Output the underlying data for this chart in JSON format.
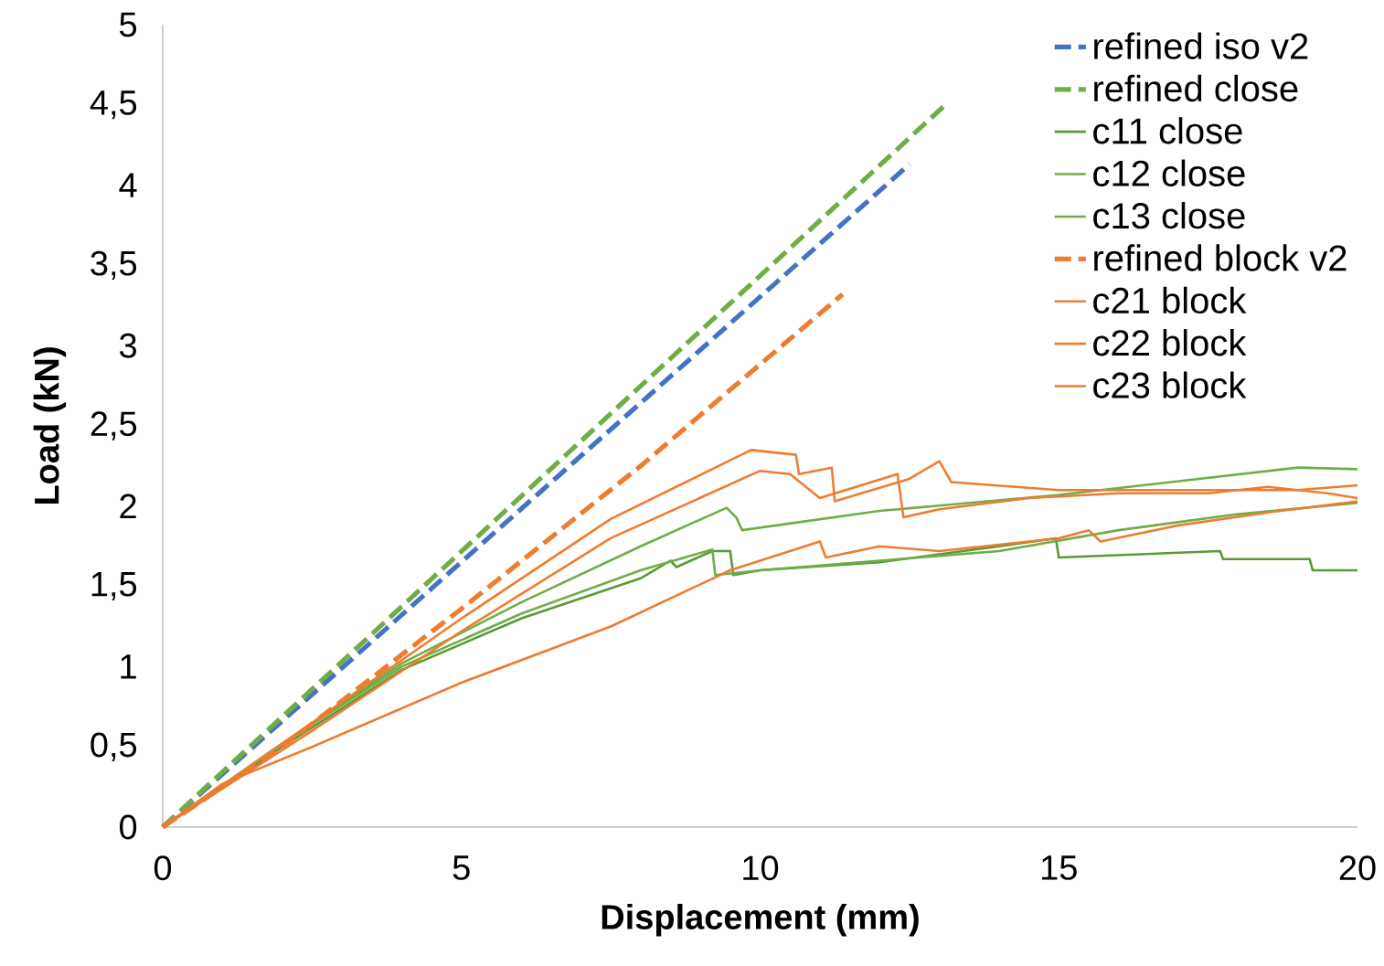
{
  "chart_data": {
    "type": "line",
    "xlabel": "Displacement (mm)",
    "ylabel": "Load (kN)",
    "xlim": [
      0,
      20
    ],
    "xticks": [
      0,
      5,
      10,
      15,
      20
    ],
    "ylim": [
      0,
      5
    ],
    "yticks": [
      0,
      {
        "value": 0.5,
        "label": "0,5"
      },
      1,
      {
        "value": 1.5,
        "label": "1,5"
      },
      2,
      {
        "value": 2.5,
        "label": "2,5"
      },
      3,
      {
        "value": 3.5,
        "label": "3,5"
      },
      4,
      {
        "value": 4.5,
        "label": "4,5"
      },
      5
    ],
    "grid": false,
    "legend": "top right",
    "marker": "none",
    "series": [
      {
        "name": "refined iso v2",
        "color": "#4472c4",
        "line_style": "dashed",
        "x": [
          0,
          12.5
        ],
        "values": [
          0,
          4.13
        ]
      },
      {
        "name": "refined close",
        "color": "#70ad47",
        "line_style": "dashed",
        "x": [
          0,
          13.07
        ],
        "values": [
          0,
          4.49
        ]
      },
      {
        "name": "c11 close",
        "color": "#5a9a35",
        "line_style": "solid",
        "x": [
          0,
          2,
          4,
          6,
          8,
          8.5,
          8.6,
          9.2,
          9.5,
          9.55,
          10,
          12,
          14,
          14.95,
          15.0,
          17.7,
          17.75,
          19.2,
          19.25,
          20
        ],
        "values": [
          0,
          0.5,
          0.98,
          1.3,
          1.55,
          1.66,
          1.62,
          1.72,
          1.72,
          1.57,
          1.6,
          1.65,
          1.75,
          1.8,
          1.68,
          1.72,
          1.67,
          1.67,
          1.6,
          1.6
        ]
      },
      {
        "name": "c12 close",
        "color": "#70ad47",
        "line_style": "solid",
        "x": [
          0,
          2,
          4,
          6,
          8,
          9.44,
          9.6,
          9.7,
          12,
          15,
          19,
          20
        ],
        "values": [
          0,
          0.52,
          1.02,
          1.4,
          1.75,
          1.99,
          1.93,
          1.85,
          1.97,
          2.07,
          2.24,
          2.23
        ]
      },
      {
        "name": "c13 close",
        "color": "#70ad47",
        "line_style": "solid",
        "x": [
          0,
          2,
          4,
          6,
          8,
          9.2,
          9.25,
          10,
          14,
          16,
          18,
          20
        ],
        "values": [
          0,
          0.52,
          1.0,
          1.33,
          1.6,
          1.73,
          1.57,
          1.6,
          1.72,
          1.85,
          1.95,
          2.02
        ]
      },
      {
        "name": "refined block v2",
        "color": "#ed7d31",
        "line_style": "dashed",
        "x": [
          0,
          2,
          5,
          8,
          11.38
        ],
        "values": [
          0,
          0.5,
          1.36,
          2.25,
          3.32
        ]
      },
      {
        "name": "c21 block",
        "color": "#ed7d31",
        "line_style": "solid",
        "x": [
          0,
          2.5,
          5,
          7.5,
          9.85,
          10.6,
          10.65,
          11.2,
          11.25,
          12.5,
          13,
          13.2,
          15,
          17,
          19,
          20
        ],
        "values": [
          0,
          0.65,
          1.3,
          1.92,
          2.35,
          2.32,
          2.2,
          2.24,
          2.03,
          2.17,
          2.28,
          2.15,
          2.1,
          2.1,
          2.1,
          2.13
        ]
      },
      {
        "name": "c22 block",
        "color": "#ed7d31",
        "line_style": "solid",
        "x": [
          0,
          2.5,
          5,
          7.5,
          10,
          10.5,
          11,
          12.3,
          12.4,
          13,
          14.5,
          16,
          17.5,
          18.5,
          19.5,
          20
        ],
        "values": [
          0,
          0.6,
          1.22,
          1.8,
          2.22,
          2.2,
          2.05,
          2.2,
          1.93,
          1.98,
          2.05,
          2.08,
          2.08,
          2.12,
          2.08,
          2.05
        ]
      },
      {
        "name": "c23 block",
        "color": "#ed7d31",
        "line_style": "solid",
        "x": [
          0,
          1,
          2.5,
          5,
          7.5,
          9.5,
          10,
          11,
          11.1,
          12,
          13,
          15,
          15.5,
          15.7,
          17,
          18.5,
          20
        ],
        "values": [
          0,
          0.27,
          0.5,
          0.9,
          1.25,
          1.6,
          1.66,
          1.78,
          1.68,
          1.75,
          1.72,
          1.8,
          1.85,
          1.78,
          1.88,
          1.96,
          2.03
        ]
      }
    ]
  }
}
